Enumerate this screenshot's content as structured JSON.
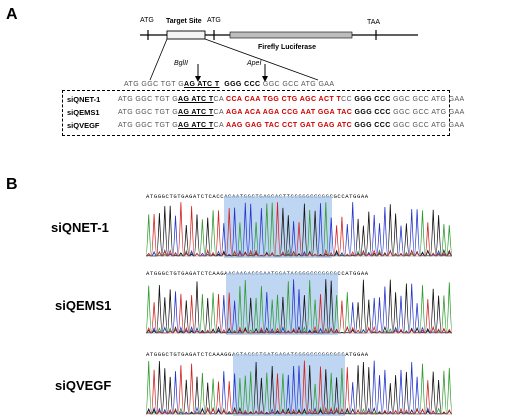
{
  "panel_a": {
    "letter": "A",
    "start_codon_left": "ATG",
    "target_site": "Target Site",
    "start_codon_right": "ATG",
    "luciferase": "Firefly Luciferase",
    "stop_codon": "TAA",
    "bgl": "BglII",
    "ape": "ApeI",
    "wt_seq": {
      "pre": "ATG GGC TGT G",
      "site": "AG ATC T",
      "mid": "GGG CCC",
      "post": "GGC GCC ATG GAA"
    },
    "rows": [
      {
        "name": "siQNET-1",
        "pre": "ATG GGC TGT G",
        "site": "AG ATC T",
        "ca": "CA ",
        "red": "CCA CAA TGG CTG AGC ACT T",
        "cc": "CC ",
        "ggg": "GGG CCC",
        "post": " GGC GCC ATG GAA"
      },
      {
        "name": "siQEMS1",
        "pre": "ATG GGC TGT G",
        "site": "AG ATC T",
        "ca": "CA ",
        "red": "AGA ACA AGA CCG AAT GGA TAC",
        "cc": " ",
        "ggg": "GGG CCC",
        "post": " GGC GCC ATG GAA"
      },
      {
        "name": "siQVEGF",
        "pre": "ATG GGC TGT G",
        "site": "AG ATC T",
        "ca": "CA ",
        "red": "AAG GAG TAC CCT GAT GAG ATC",
        "cc": " ",
        "ggg": "GGG CCC",
        "post": " GGC GCC ATG GAA"
      }
    ]
  },
  "panel_b": {
    "letter": "B",
    "traces": [
      {
        "label": "siQNET-1",
        "seq": "ATGGGCTGTGAGATCTCACCACAATGGCTGAGCACTTCCGGGCCCGGCGCCATGGAA"
      },
      {
        "label": "siQEMS1",
        "seq": "ATGGGCTGTGAGATCTCAAGAACAAGACCGAATGGATACGGGCCCGGCGCCATGGAA"
      },
      {
        "label": "siQVEGF",
        "seq": "ATGGGCTGTGAGATCTCAAAGGAGTACCCTGATGAGATCGGGCCCGGCGCCATGGAA"
      }
    ]
  },
  "colors": {
    "highlight": "#a9c8ee",
    "trace_a": "#2e9b2e",
    "trace_c": "#2233cc",
    "trace_g": "#111111",
    "trace_t": "#d42020",
    "red_seq": "#cc0000"
  }
}
